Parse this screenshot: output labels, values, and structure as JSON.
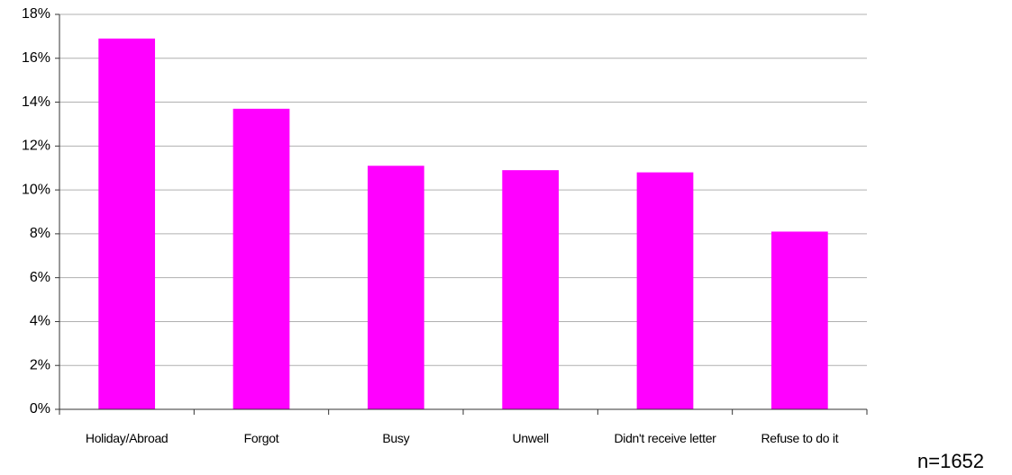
{
  "chart_data": {
    "type": "bar",
    "categories": [
      "Holiday/Abroad",
      "Forgot",
      "Busy",
      "Unwell",
      "Didn't receive letter",
      "Refuse to do it"
    ],
    "values": [
      16.9,
      13.7,
      11.1,
      10.9,
      10.8,
      8.1
    ],
    "color": "#ff00ff",
    "ylim": [
      0,
      18
    ],
    "yticks": [
      {
        "value": 0,
        "label": "0%"
      },
      {
        "value": 2,
        "label": "2%"
      },
      {
        "value": 4,
        "label": "4%"
      },
      {
        "value": 6,
        "label": "6%"
      },
      {
        "value": 8,
        "label": "8%"
      },
      {
        "value": 10,
        "label": "10%"
      },
      {
        "value": 12,
        "label": "12%"
      },
      {
        "value": 14,
        "label": "14%"
      },
      {
        "value": 16,
        "label": "16%"
      },
      {
        "value": 18,
        "label": "18%"
      }
    ],
    "grid": true,
    "annotation": "n=1652"
  }
}
